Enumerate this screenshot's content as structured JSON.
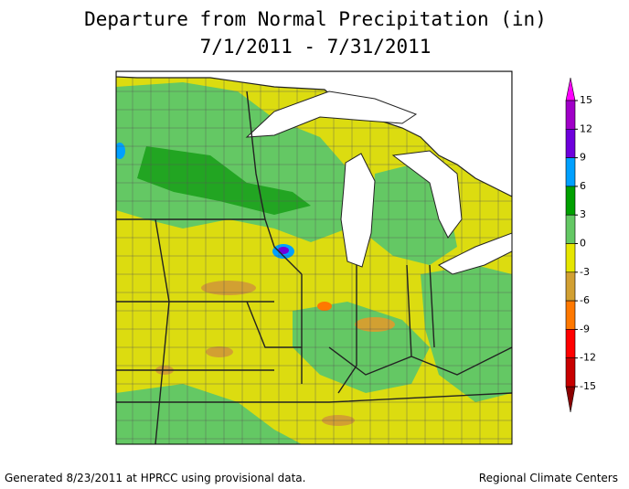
{
  "title": [
    "Departure from Normal Precipitation (in)",
    "7/1/2011 - 7/31/2011"
  ],
  "legend": {
    "ticks": [
      15,
      12,
      9,
      6,
      3,
      0,
      -3,
      -6,
      -9,
      -12,
      -15
    ],
    "colors": [
      "#a000c8",
      "#6e00dc",
      "#00a0ff",
      "#00a000",
      "#64c864",
      "#e6e600",
      "#d2a032",
      "#ff7800",
      "#ff0000",
      "#c80000"
    ],
    "over_color": "#ff00ff",
    "under_color": "#8b0000"
  },
  "footer": {
    "left": "Generated 8/23/2011 at HPRCC using provisional data.",
    "right": "Regional Climate Centers"
  }
}
